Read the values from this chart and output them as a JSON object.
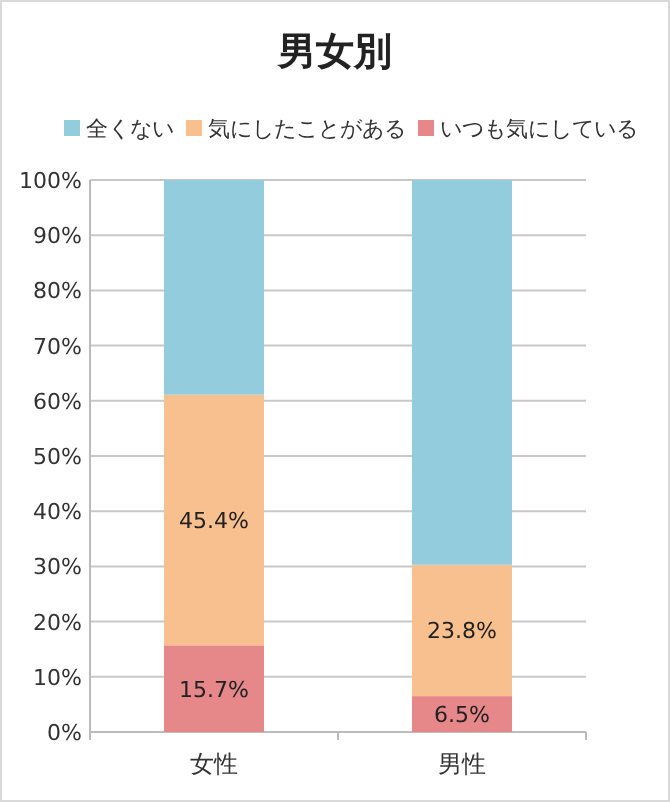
{
  "chart_data": {
    "type": "bar",
    "title": "男女別",
    "categories": [
      "女性",
      "男性"
    ],
    "stacked": true,
    "legend": "top",
    "grid": "y",
    "ylim": [
      0,
      100
    ],
    "yticks": [
      {
        "value": 0,
        "label": "0%"
      },
      {
        "value": 10,
        "label": "10%"
      },
      {
        "value": 20,
        "label": "20%"
      },
      {
        "value": 30,
        "label": "30%"
      },
      {
        "value": 40,
        "label": "40%"
      },
      {
        "value": 50,
        "label": "50%"
      },
      {
        "value": 60,
        "label": "60%"
      },
      {
        "value": 70,
        "label": "70%"
      },
      {
        "value": 80,
        "label": "80%"
      },
      {
        "value": 90,
        "label": "90%"
      },
      {
        "value": 100,
        "label": "100%"
      }
    ],
    "series": [
      {
        "name": "いつも気にしている",
        "color": "#e6878a",
        "values": [
          15.7,
          6.5
        ],
        "value_labels": [
          "15.7%",
          "6.5%"
        ]
      },
      {
        "name": "気にしたことがある",
        "color": "#f9c08f",
        "values": [
          45.4,
          23.8
        ],
        "value_labels": [
          "45.4%",
          "23.8%"
        ]
      },
      {
        "name": "全くない",
        "color": "#93cddd",
        "values": [
          38.9,
          69.7
        ],
        "value_labels": [
          null,
          null
        ]
      }
    ]
  }
}
